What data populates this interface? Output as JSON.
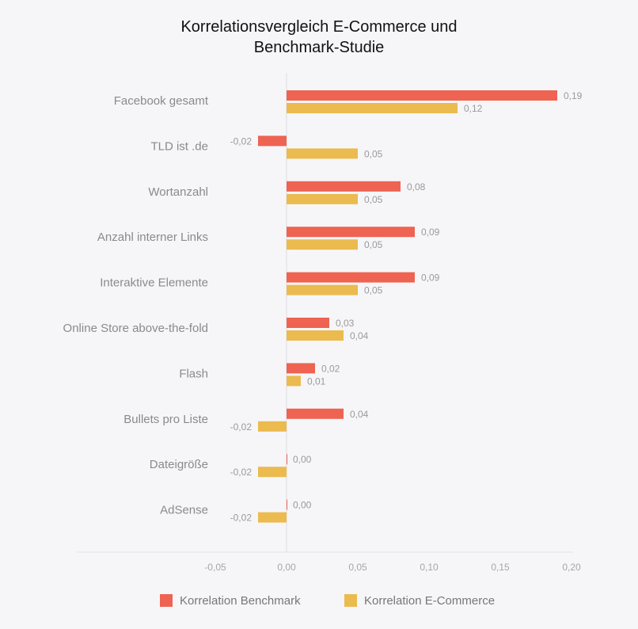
{
  "chart_data": {
    "type": "bar",
    "orientation": "horizontal",
    "title_lines": [
      "Korrelationsvergleich E-Commerce und",
      "Benchmark-Studie"
    ],
    "categories": [
      "Facebook gesamt",
      "TLD ist .de",
      "Wortanzahl",
      "Anzahl interner Links",
      "Interaktive Elemente",
      "Online Store above-the-fold",
      "Flash",
      "Bullets pro Liste",
      "Dateigröße",
      "AdSense"
    ],
    "series": [
      {
        "name": "Korrelation Benchmark",
        "color": "#ee6352",
        "values": [
          0.19,
          -0.02,
          0.08,
          0.09,
          0.09,
          0.03,
          0.02,
          0.04,
          0.0,
          0.0
        ],
        "labels": [
          "0,19",
          "-0,02",
          "0,08",
          "0,09",
          "0,09",
          "0,03",
          "0,02",
          "0,04",
          "0,00",
          "0,00"
        ]
      },
      {
        "name": "Korrelation E-Commerce",
        "color": "#ebbb4f",
        "values": [
          0.12,
          0.05,
          0.05,
          0.05,
          0.05,
          0.04,
          0.01,
          -0.02,
          -0.02,
          -0.02
        ],
        "labels": [
          "0,12",
          "0,05",
          "0,05",
          "0,05",
          "0,05",
          "0,04",
          "0,01",
          "-0,02",
          "-0,02",
          "-0,02"
        ]
      }
    ],
    "xlim": [
      -0.05,
      0.2
    ],
    "xticks": [
      -0.05,
      0.0,
      0.05,
      0.1,
      0.15,
      0.2
    ],
    "xtick_labels": [
      "-0,05",
      "0,00",
      "0,05",
      "0,10",
      "0,15",
      "0,20"
    ],
    "grid": false,
    "legend_position": "bottom"
  }
}
